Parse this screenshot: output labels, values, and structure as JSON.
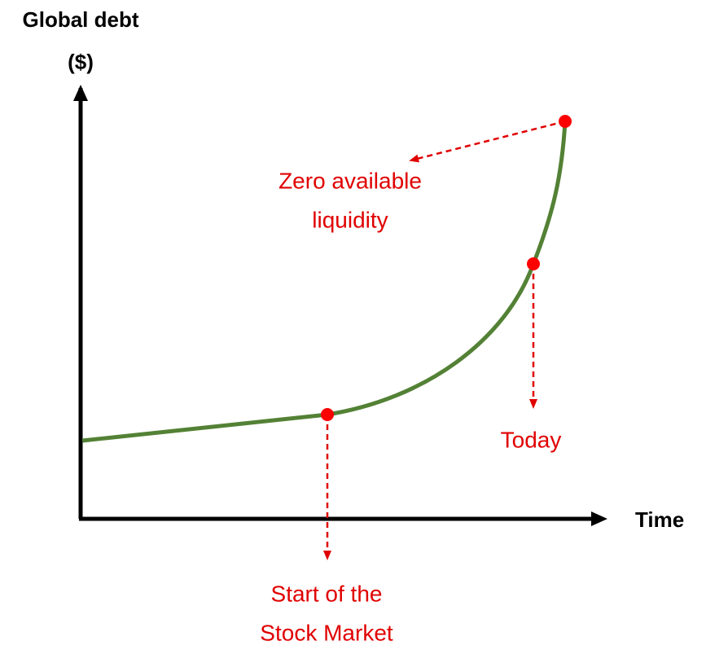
{
  "axes": {
    "y_label": [
      "Global debt",
      "($)"
    ],
    "x_label": "Time"
  },
  "annotations": [
    {
      "lines": [
        "Zero available",
        "liquidity"
      ]
    },
    {
      "lines": [
        "Today"
      ]
    },
    {
      "lines": [
        "Start of the",
        "Stock Market"
      ]
    }
  ]
}
